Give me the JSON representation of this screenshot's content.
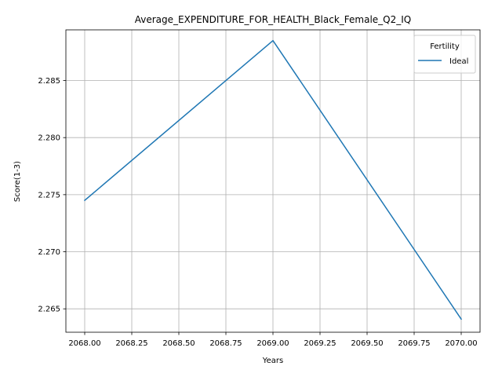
{
  "chart_data": {
    "type": "line",
    "title": "Average_EXPENDITURE_FOR_HEALTH_Black_Female_Q2_IQ",
    "xlabel": "Years",
    "ylabel": "Score(1-3)",
    "xlim": [
      2067.9,
      2070.1
    ],
    "ylim": [
      2.26295,
      2.28944
    ],
    "x_ticks": [
      2068.0,
      2068.25,
      2068.5,
      2068.75,
      2069.0,
      2069.25,
      2069.5,
      2069.75,
      2070.0
    ],
    "x_tick_labels": [
      "2068.00",
      "2068.25",
      "2068.50",
      "2068.75",
      "2069.00",
      "2069.25",
      "2069.50",
      "2069.75",
      "2070.00"
    ],
    "y_ticks": [
      2.265,
      2.27,
      2.275,
      2.28,
      2.285
    ],
    "y_tick_labels": [
      "2.265",
      "2.270",
      "2.275",
      "2.280",
      "2.285"
    ],
    "grid": true,
    "legend": {
      "title": "Fertility",
      "placement": "top-right"
    },
    "series": [
      {
        "name": "Ideal",
        "color": "#1f77b4",
        "x": [
          2068,
          2069,
          2070
        ],
        "values": [
          2.2745,
          2.2885,
          2.2641
        ]
      }
    ]
  }
}
